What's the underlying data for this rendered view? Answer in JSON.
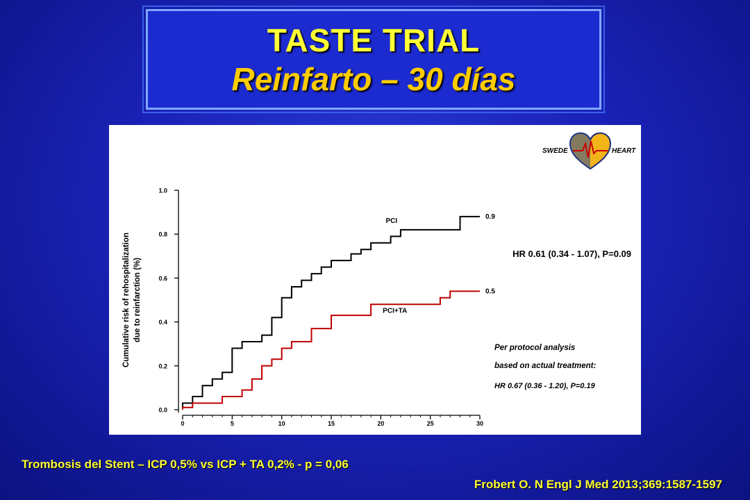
{
  "slide": {
    "title": "TASTE TRIAL",
    "subtitle": "Reinfarto – 30 días",
    "footer_left": "Trombosis del Stent – ICP 0,5% vs ICP + TA 0,2% - p = 0,06",
    "footer_right": "Frobert O. N Engl J Med 2013;369:1587-1597"
  },
  "logo": {
    "left_text": "SWEDE",
    "right_text": "HEART"
  },
  "chart_data": {
    "type": "line",
    "title": "",
    "xlabel": "",
    "ylabel_line1": "Cumulative risk of rehospitalization",
    "ylabel_line2": "due to reinfarction (%)",
    "xlim": [
      0,
      30
    ],
    "ylim": [
      0,
      1.0
    ],
    "x_ticks": [
      0,
      5,
      10,
      15,
      20,
      25,
      30
    ],
    "y_ticks": [
      0.0,
      0.2,
      0.4,
      0.6,
      0.8,
      1.0
    ],
    "x_tick_labels": [
      "0",
      "5",
      "10",
      "15",
      "20",
      "25",
      "30"
    ],
    "y_tick_labels": [
      "0.0",
      "0.2",
      "0.4",
      "0.6",
      "0.8",
      "1.0"
    ],
    "grid": false,
    "series": [
      {
        "name": "PCI",
        "color": "#000000",
        "step": true,
        "points": [
          [
            0,
            0
          ],
          [
            0,
            0.03
          ],
          [
            1,
            0.03
          ],
          [
            1,
            0.06
          ],
          [
            2,
            0.06
          ],
          [
            2,
            0.11
          ],
          [
            3,
            0.11
          ],
          [
            3,
            0.14
          ],
          [
            4,
            0.14
          ],
          [
            4,
            0.17
          ],
          [
            5,
            0.17
          ],
          [
            5,
            0.28
          ],
          [
            6,
            0.28
          ],
          [
            6,
            0.31
          ],
          [
            8,
            0.31
          ],
          [
            8,
            0.34
          ],
          [
            9,
            0.34
          ],
          [
            9,
            0.42
          ],
          [
            10,
            0.42
          ],
          [
            10,
            0.51
          ],
          [
            11,
            0.51
          ],
          [
            11,
            0.56
          ],
          [
            12,
            0.56
          ],
          [
            12,
            0.59
          ],
          [
            13,
            0.59
          ],
          [
            13,
            0.62
          ],
          [
            14,
            0.62
          ],
          [
            14,
            0.65
          ],
          [
            15,
            0.65
          ],
          [
            15,
            0.68
          ],
          [
            17,
            0.68
          ],
          [
            17,
            0.71
          ],
          [
            18,
            0.71
          ],
          [
            18,
            0.73
          ],
          [
            19,
            0.73
          ],
          [
            19,
            0.76
          ],
          [
            21,
            0.76
          ],
          [
            21,
            0.79
          ],
          [
            22,
            0.79
          ],
          [
            22,
            0.82
          ],
          [
            28,
            0.82
          ],
          [
            28,
            0.88
          ],
          [
            30,
            0.88
          ]
        ],
        "end_label": "0.9"
      },
      {
        "name": "PCI+TA",
        "color": "#c00000",
        "step": true,
        "points": [
          [
            0,
            0
          ],
          [
            0,
            0.01
          ],
          [
            1,
            0.01
          ],
          [
            1,
            0.03
          ],
          [
            4,
            0.03
          ],
          [
            4,
            0.06
          ],
          [
            6,
            0.06
          ],
          [
            6,
            0.09
          ],
          [
            7,
            0.09
          ],
          [
            7,
            0.14
          ],
          [
            8,
            0.14
          ],
          [
            8,
            0.2
          ],
          [
            9,
            0.2
          ],
          [
            9,
            0.23
          ],
          [
            10,
            0.23
          ],
          [
            10,
            0.28
          ],
          [
            11,
            0.28
          ],
          [
            11,
            0.31
          ],
          [
            13,
            0.31
          ],
          [
            13,
            0.37
          ],
          [
            15,
            0.37
          ],
          [
            15,
            0.43
          ],
          [
            19,
            0.43
          ],
          [
            19,
            0.48
          ],
          [
            26,
            0.48
          ],
          [
            26,
            0.51
          ],
          [
            27,
            0.51
          ],
          [
            27,
            0.54
          ],
          [
            30,
            0.54
          ]
        ],
        "end_label": "0.5"
      }
    ],
    "annotations": {
      "hr": "HR 0.61 (0.34 - 1.07), P=0.09",
      "pp_line1": "Per protocol analysis",
      "pp_line2": "based on actual treatment:",
      "pp_line3": "HR 0.67 (0.36 - 1.20), P=0.19"
    }
  }
}
